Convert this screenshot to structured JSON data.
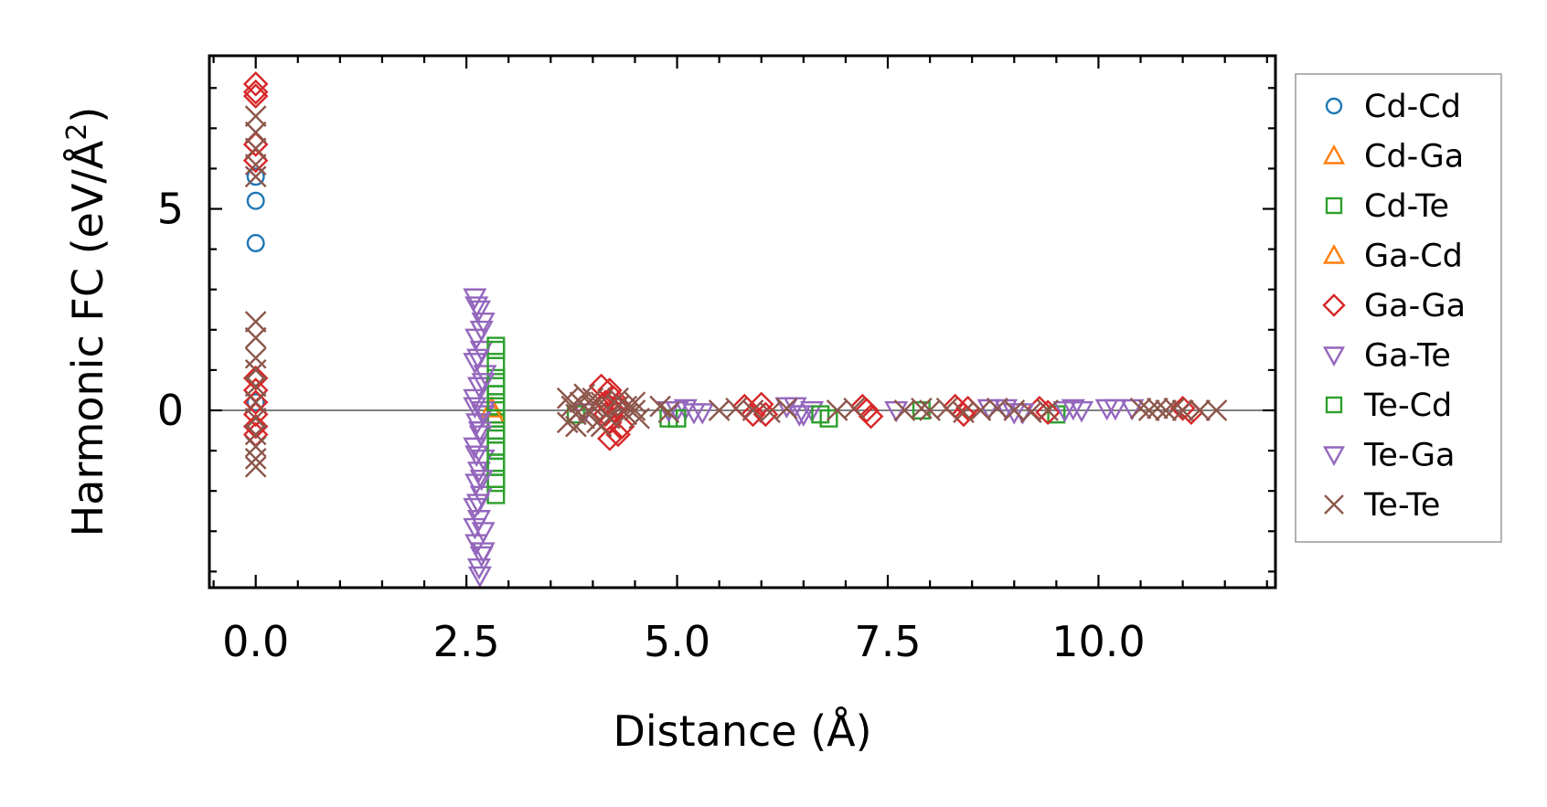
{
  "chart_data": {
    "type": "scatter",
    "xlabel": "Distance (Å)",
    "ylabel": "Harmonic FC (eV/Å²)",
    "ylabel_main": "Harmonic FC (eV/Å",
    "ylabel_sup": "2",
    "ylabel_end": ")",
    "xlim": [
      -0.55,
      12.1
    ],
    "ylim": [
      -4.4,
      8.8
    ],
    "xticks": [
      0.0,
      2.5,
      5.0,
      7.5,
      10.0
    ],
    "xtick_labels": [
      "0.0",
      "2.5",
      "5.0",
      "7.5",
      "10.0"
    ],
    "yticks": [
      0,
      5
    ],
    "ytick_labels": [
      "0",
      "5"
    ],
    "zero_line": true,
    "legend_position": "outside-right",
    "series": [
      {
        "name": "Cd-Cd",
        "marker": "circle",
        "color": "#1f77b4",
        "x": [
          0,
          0,
          0,
          0
        ],
        "y": [
          4.15,
          5.2,
          5.8,
          0.2
        ]
      },
      {
        "name": "Cd-Ga",
        "marker": "triangle-up",
        "color": "#ff7f0e",
        "x": [
          2.8
        ],
        "y": [
          0.05
        ]
      },
      {
        "name": "Cd-Te",
        "marker": "square",
        "color": "#2ca02c",
        "x": [
          2.85,
          2.85,
          2.85,
          2.85,
          2.85,
          2.85,
          2.85,
          2.85,
          2.85,
          2.85,
          2.85,
          4.9,
          6.8,
          9.5
        ],
        "y": [
          1.6,
          0.8,
          0.4,
          0.1,
          -0.3,
          -0.6,
          -1.0,
          -1.4,
          -1.8,
          -2.1,
          -0.2,
          -0.2,
          -0.2,
          -0.1
        ]
      },
      {
        "name": "Ga-Cd",
        "marker": "triangle-up",
        "color": "#ff7f0e",
        "x": [
          2.82
        ],
        "y": [
          -0.1
        ]
      },
      {
        "name": "Ga-Ga",
        "marker": "diamond",
        "color": "#d62728",
        "x": [
          0,
          0,
          0,
          0,
          0,
          0,
          0,
          0,
          0,
          0,
          0,
          4.1,
          4.2,
          4.25,
          4.3,
          4.15,
          4.2,
          4.35,
          4.3,
          4.2,
          4.15,
          4.25,
          5.8,
          5.9,
          6.0,
          6.05,
          7.2,
          7.3,
          7.25,
          8.3,
          8.4,
          8.45,
          9.3,
          9.4,
          11.0,
          11.1
        ],
        "y": [
          8.1,
          7.9,
          7.8,
          6.6,
          6.2,
          0.8,
          0.5,
          0.2,
          -0.1,
          -0.4,
          -0.6,
          0.6,
          0.5,
          0.3,
          0.1,
          -0.1,
          -0.3,
          -0.4,
          -0.6,
          -0.7,
          0.2,
          0.0,
          0.1,
          -0.1,
          0.15,
          -0.1,
          0.1,
          -0.15,
          0.0,
          0.1,
          -0.1,
          0.05,
          0.05,
          -0.05,
          0.05,
          -0.05
        ]
      },
      {
        "name": "Ga-Te",
        "marker": "triangle-down",
        "color": "#9467bd",
        "x": [
          2.6,
          2.65,
          2.7,
          2.62,
          2.68,
          2.6,
          2.72,
          2.65,
          2.6,
          2.7,
          2.63,
          2.67,
          2.6,
          2.7,
          2.65,
          2.62,
          2.68,
          2.6,
          2.65,
          2.7,
          2.62,
          2.68,
          2.65,
          2.7,
          5.0,
          5.1,
          5.2,
          6.4,
          6.5,
          6.6,
          8.9,
          9.0,
          9.7,
          9.8,
          10.2,
          10.4
        ],
        "y": [
          2.8,
          2.5,
          2.2,
          1.8,
          1.5,
          1.2,
          0.9,
          0.6,
          0.3,
          0.0,
          -0.3,
          -0.6,
          -0.9,
          -1.2,
          -1.5,
          -1.8,
          -2.1,
          -2.4,
          -2.7,
          -3.0,
          -3.3,
          -3.6,
          -3.9,
          -0.1,
          0.0,
          0.05,
          -0.05,
          0.1,
          -0.1,
          0.0,
          0.05,
          -0.05,
          0.05,
          0.0,
          0.05,
          0.05
        ]
      },
      {
        "name": "Te-Cd",
        "marker": "square",
        "color": "#2ca02c",
        "x": [
          2.85,
          2.85,
          2.85,
          2.85,
          2.85,
          2.85,
          2.85,
          2.85,
          3.8,
          5.0,
          6.7,
          7.9
        ],
        "y": [
          1.5,
          1.1,
          0.6,
          0.2,
          -0.5,
          -0.9,
          -1.3,
          -1.7,
          -0.1,
          -0.2,
          -0.1,
          0.0
        ]
      },
      {
        "name": "Te-Ga",
        "marker": "triangle-down",
        "color": "#9467bd",
        "x": [
          2.62,
          2.68,
          2.64,
          2.7,
          2.6,
          2.66,
          2.62,
          2.68,
          2.64,
          2.6,
          2.7,
          2.66,
          3.9,
          4.9,
          5.3,
          6.3,
          6.45,
          7.6,
          8.7,
          9.1,
          9.6,
          10.1
        ],
        "y": [
          2.6,
          2.0,
          1.3,
          0.7,
          0.1,
          -0.5,
          -1.1,
          -1.7,
          -2.3,
          -2.9,
          -3.5,
          -4.1,
          -0.05,
          0.0,
          -0.05,
          0.1,
          -0.1,
          0.0,
          0.05,
          -0.05,
          0.0,
          0.05
        ]
      },
      {
        "name": "Te-Te",
        "marker": "x",
        "color": "#8c564b",
        "x": [
          0,
          0,
          0,
          0,
          0,
          0,
          0,
          0,
          0,
          0,
          0,
          0,
          0,
          0,
          0,
          0,
          3.7,
          3.75,
          3.8,
          3.85,
          3.9,
          3.95,
          4.0,
          4.05,
          4.1,
          4.2,
          4.3,
          4.4,
          4.5,
          4.55,
          3.7,
          3.8,
          3.9,
          4.0,
          4.1,
          4.3,
          4.5,
          4.4,
          4.8,
          4.9,
          5.5,
          5.7,
          5.9,
          6.1,
          6.3,
          6.9,
          7.1,
          7.7,
          7.9,
          8.0,
          8.2,
          8.4,
          8.6,
          8.8,
          9.0,
          9.2,
          9.4,
          10.5,
          10.6,
          10.7,
          10.8,
          10.9,
          11.0,
          11.2,
          11.4
        ],
        "y": [
          7.3,
          6.9,
          6.5,
          6.1,
          5.8,
          2.2,
          1.8,
          1.3,
          1.0,
          0.6,
          0.2,
          -0.2,
          -0.6,
          -0.9,
          -1.2,
          -1.4,
          0.3,
          0.1,
          -0.1,
          0.2,
          -0.2,
          0.0,
          0.3,
          -0.3,
          0.2,
          -0.2,
          0.1,
          -0.1,
          0.2,
          -0.2,
          -0.3,
          -0.4,
          0.4,
          0.1,
          -0.4,
          0.3,
          0.0,
          0.1,
          0.1,
          -0.05,
          0.0,
          0.05,
          0.0,
          -0.05,
          0.05,
          0.0,
          0.05,
          0.0,
          0.05,
          0.0,
          0.05,
          -0.05,
          0.0,
          0.05,
          0.0,
          -0.05,
          0.0,
          0.05,
          0.0,
          0.05,
          0.0,
          0.05,
          0.0,
          0.0,
          0.0
        ]
      }
    ]
  }
}
